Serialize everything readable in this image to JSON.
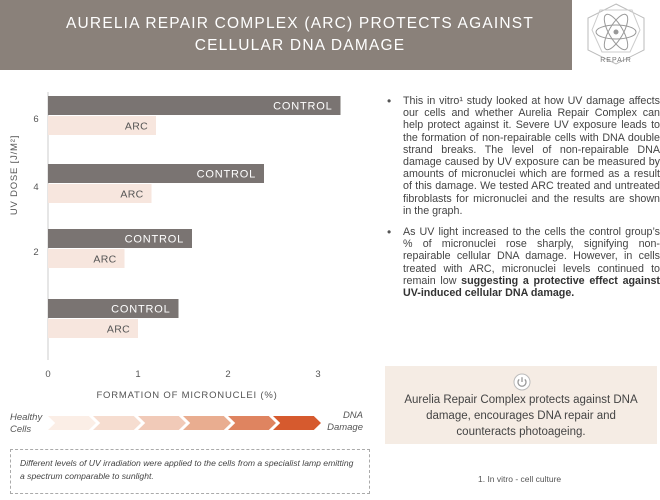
{
  "header": {
    "title": "AURELIA REPAIR COMPLEX (ARC) PROTECTS AGAINST\nCELLULAR DNA DAMAGE",
    "badge_label": "REPAIR",
    "badge_icon": "atom-icon",
    "background": "#8a817a"
  },
  "chart_data": {
    "type": "bar",
    "orientation": "horizontal",
    "ylabel": "UV DOSE [J/M²]",
    "xlabel": "FORMATION OF MICRONUCLEI (%)",
    "xlim": [
      0,
      3.2
    ],
    "xticks": [
      "0",
      "1",
      "2",
      "3"
    ],
    "xtick_values": [
      0,
      1,
      2,
      3
    ],
    "categories": [
      "6",
      "4",
      "2",
      ""
    ],
    "series": [
      {
        "name": "CONTROL",
        "color": "#7a7472",
        "values": [
          3.25,
          2.4,
          1.6,
          1.45
        ]
      },
      {
        "name": "ARC",
        "color": "#f7e6de",
        "values": [
          1.2,
          1.15,
          0.85,
          1.0
        ]
      }
    ],
    "grid": false,
    "legend": "none"
  },
  "gradient": {
    "left_label": "Healthy\nCells",
    "right_label": "DNA\nDamage",
    "steps": [
      "#fbeee6",
      "#f6ddd0",
      "#f1cab8",
      "#e9ad90",
      "#df8460",
      "#d65a2e"
    ]
  },
  "note": "Different levels of UV irradiation were applied to the cells from a specialist lamp emitting a spectrum comparable to sunlight.",
  "bullets": [
    {
      "text": "This in vitro¹ study looked at how UV damage affects our cells and whether Aurelia Repair Complex can help protect against it. Severe UV exposure leads to the formation of non-repairable cells with DNA double strand breaks. The level of non-repairable DNA damage caused by UV exposure can be measured by amounts of micronuclei which are formed as a result of this damage. We tested ARC treated and untreated fibroblasts for micronuclei and the results are shown in the graph.",
      "bold": ""
    },
    {
      "text": "As UV light increased to the cells the control group’s % of micronuclei rose sharply, signifying non-repairable cellular DNA damage. However, in cells treated with ARC, micronuclei levels continued to remain low ",
      "bold": "suggesting a protective effect against UV-induced cellular DNA damage."
    }
  ],
  "claim": {
    "icon": "power-icon",
    "text": "Aurelia Repair Complex protects against DNA damage, encourages DNA repair and counteracts photoageing."
  },
  "footnote": "1.  In vitro - cell culture"
}
